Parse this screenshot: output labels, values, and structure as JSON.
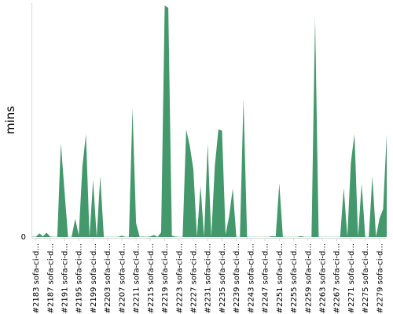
{
  "chart_data": {
    "type": "area",
    "title": "",
    "xlabel": "",
    "ylabel": "mins",
    "color": "#43996b",
    "y_ticks": [
      "0"
    ],
    "grid": false,
    "legend": "none",
    "x_labels": [
      "#2183 sofa-ci-d...",
      "#2187 sofa-ci-d...",
      "#2191 sofa-ci-d...",
      "#2195 sofa-ci-d...",
      "#2199 sofa-ci-d...",
      "#2203 sofa-ci-d...",
      "#2207 sofa-ci-d...",
      "#2211 sofa-ci-d...",
      "#2215 sofa-ci-d...",
      "#2219 sofa-ci-d...",
      "#2223 sofa-ci-d...",
      "#2227 sofa-ci-d...",
      "#2231 sofa-ci-d...",
      "#2235 sofa-ci-d...",
      "#2239 sofa-ci-d...",
      "#2243 sofa-ci-d...",
      "#2247 sofa-ci-d...",
      "#2251 sofa-ci-d...",
      "#2255 sofa-ci-d...",
      "#2259 sofa-ci-d...",
      "#2263 sofa-ci-d...",
      "#2267 sofa-ci-d...",
      "#2271 sofa-ci-d...",
      "#2275 sofa-ci-d...",
      "#2279 sofa-ci-d..."
    ],
    "x": [
      2182,
      2183,
      2184,
      2185,
      2186,
      2187,
      2188,
      2189,
      2190,
      2191,
      2192,
      2193,
      2194,
      2195,
      2196,
      2197,
      2198,
      2199,
      2200,
      2201,
      2202,
      2203,
      2204,
      2205,
      2206,
      2207,
      2208,
      2209,
      2210,
      2211,
      2212,
      2213,
      2214,
      2215,
      2216,
      2217,
      2218,
      2219,
      2220,
      2221,
      2222,
      2223,
      2224,
      2225,
      2226,
      2227,
      2228,
      2229,
      2230,
      2231,
      2232,
      2233,
      2234,
      2235,
      2236,
      2237,
      2238,
      2239,
      2240,
      2241,
      2242,
      2243,
      2244,
      2245,
      2246,
      2247,
      2248,
      2249,
      2250,
      2251,
      2252,
      2253,
      2254,
      2255,
      2256,
      2257,
      2258,
      2259,
      2260,
      2261,
      2262,
      2263,
      2264,
      2265,
      2266,
      2267,
      2268,
      2269,
      2270,
      2271,
      2272,
      2273,
      2274,
      2275,
      2276,
      2277,
      2278,
      2279,
      2280,
      2281
    ],
    "values": [
      0.2,
      0.1,
      1.6,
      0.3,
      1.9,
      0.2,
      0.1,
      0.1,
      40,
      20,
      0.1,
      0.1,
      7.8,
      0.8,
      30,
      44,
      0.1,
      24.4,
      0.1,
      26,
      0.1,
      0.1,
      0.1,
      0.1,
      0.1,
      0.6,
      0.1,
      0.1,
      55,
      6,
      0.1,
      0.2,
      0.1,
      0.3,
      0.9,
      0.1,
      2,
      99,
      98,
      0.6,
      0.2,
      0.1,
      0.1,
      46,
      39,
      29,
      0.1,
      22,
      0.1,
      40,
      0.1,
      30.5,
      46,
      45.5,
      1.1,
      9,
      20.8,
      0.1,
      0.1,
      59,
      0.1,
      0.1,
      0.1,
      0.1,
      0.1,
      0.1,
      0.1,
      0.4,
      0.2,
      23,
      0.1,
      0.1,
      0.1,
      0.1,
      0.1,
      0.4,
      0.1,
      0.1,
      0.1,
      94,
      0.1,
      0.1,
      0.1,
      0.1,
      0.1,
      0.1,
      0.1,
      21,
      0.1,
      32,
      44,
      0.1,
      23,
      0.1,
      0.1,
      26,
      0.2,
      8,
      12,
      44
    ]
  }
}
